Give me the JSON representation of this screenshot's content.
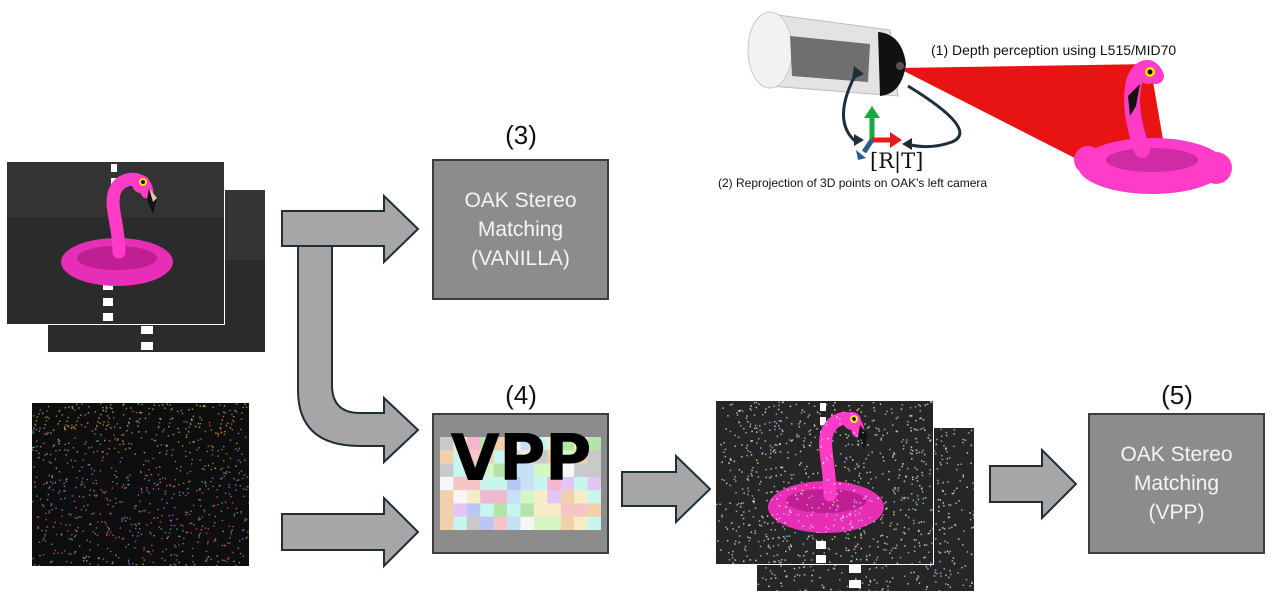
{
  "labels": {
    "step3": "(3)",
    "step4": "(4)",
    "step5": "(5)",
    "depth_caption": "(1) Depth perception using L515/MID70",
    "reproj_caption": "(2) Reprojection of 3D points on OAK's left camera",
    "transform": "[R|T]"
  },
  "boxes": {
    "vanilla": "OAK Stereo\nMatching\n(VANILLA)",
    "vpp_process": "VPP",
    "vpp_result": "OAK Stereo\nMatching\n(VPP)"
  },
  "colors": {
    "box_fill": "#8c8c8c",
    "arrow_fill": "#a6a6a6",
    "arrow_stroke": "#1f2f3a",
    "flamingo": "#ff3cc8",
    "laser": "#e60000",
    "background_dark": "#2b2b2b"
  },
  "icons": {
    "sensor": "depth-sensor-icon",
    "axes": "coordinate-axes-icon"
  }
}
